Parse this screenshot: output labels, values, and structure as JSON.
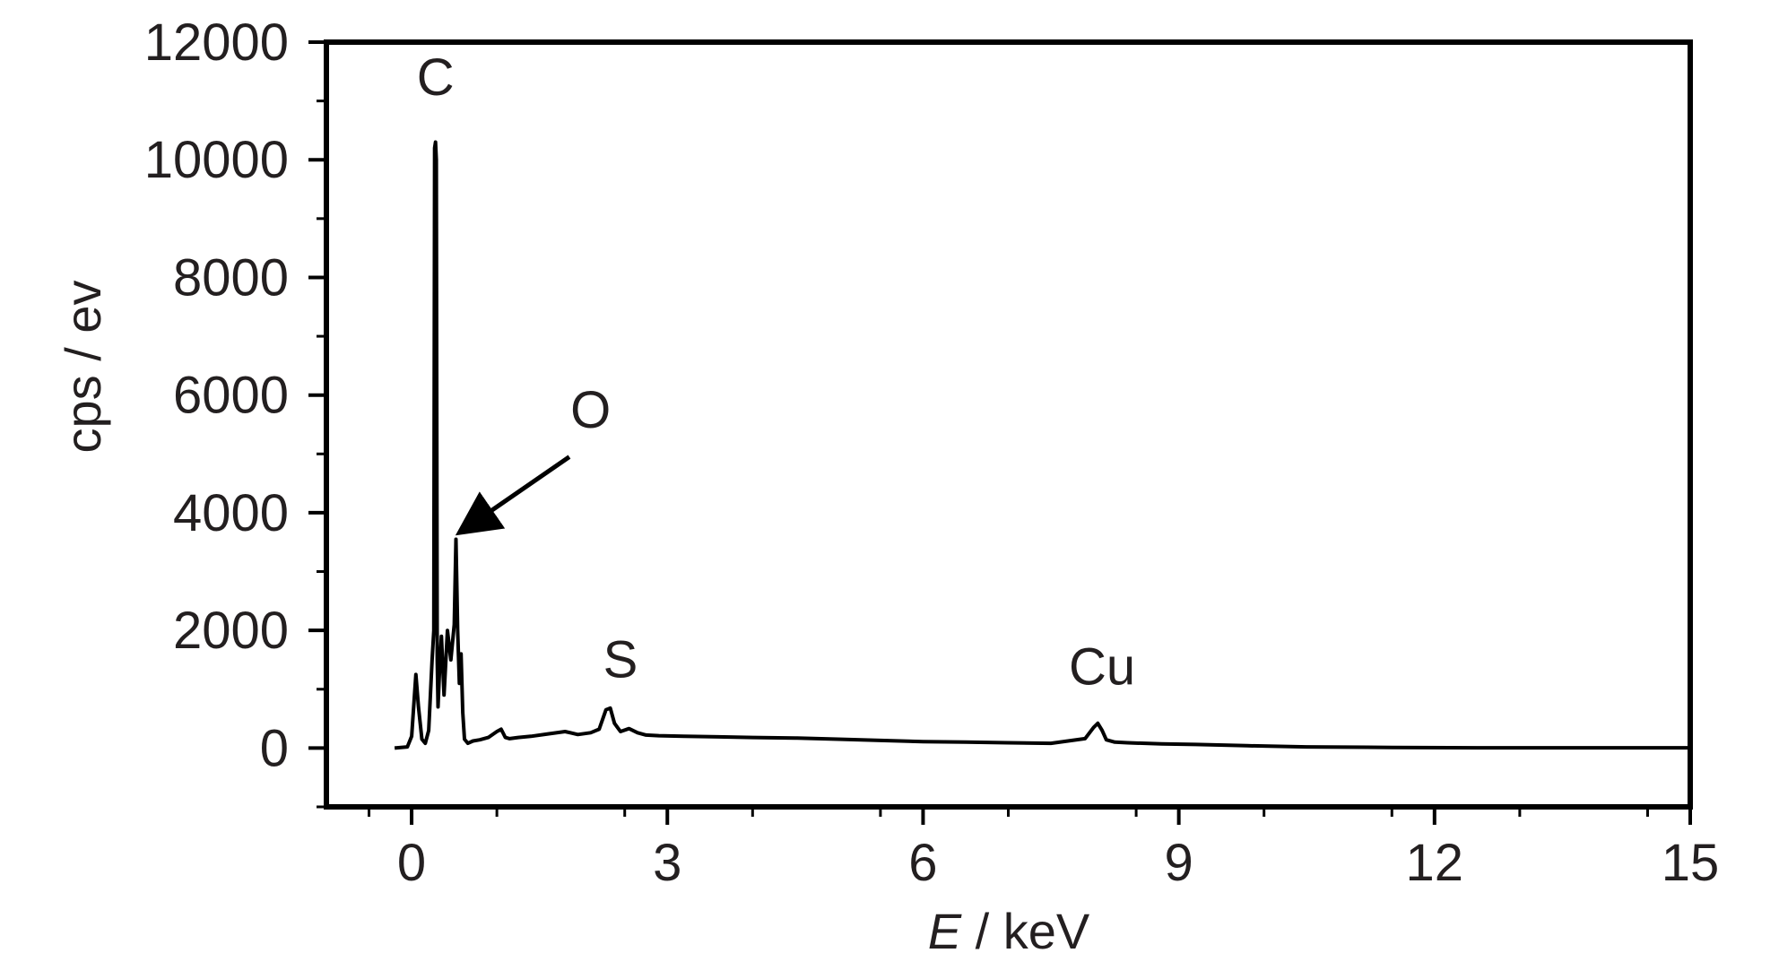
{
  "chart_data": {
    "type": "line",
    "xlabel_var": "E",
    "xlabel_unit": " / keV",
    "ylabel": "cps / ev",
    "xlim": [
      -1,
      15
    ],
    "ylim": [
      -1000,
      12000
    ],
    "x_ticks": [
      0,
      3,
      6,
      9,
      12,
      15
    ],
    "x_tick_labels": [
      "0",
      "3",
      "6",
      "9",
      "12",
      "15"
    ],
    "y_ticks": [
      0,
      2000,
      4000,
      6000,
      8000,
      10000,
      12000
    ],
    "y_tick_labels": [
      "0",
      "2000",
      "4000",
      "6000",
      "8000",
      "10000",
      "12000"
    ],
    "grid": false,
    "legend": "none",
    "annotations": [
      {
        "label": "C",
        "x": 0.28,
        "y": 11100,
        "arrow": false
      },
      {
        "label": "O",
        "x": 2.1,
        "y": 5450,
        "arrow": true,
        "arrow_from": [
          1.85,
          4950
        ],
        "arrow_to": [
          0.6,
          3700
        ]
      },
      {
        "label": "S",
        "x": 2.45,
        "y": 1200,
        "arrow": false
      },
      {
        "label": "Cu",
        "x": 8.1,
        "y": 1080,
        "arrow": false
      }
    ],
    "series": [
      {
        "color": "#000000",
        "x": [
          -0.2,
          -0.05,
          0.0,
          0.05,
          0.08,
          0.12,
          0.16,
          0.2,
          0.24,
          0.26,
          0.27,
          0.28,
          0.29,
          0.3,
          0.31,
          0.33,
          0.35,
          0.38,
          0.42,
          0.46,
          0.5,
          0.52,
          0.54,
          0.56,
          0.58,
          0.6,
          0.62,
          0.66,
          0.72,
          0.8,
          0.9,
          1.0,
          1.05,
          1.1,
          1.15,
          1.25,
          1.4,
          1.6,
          1.8,
          1.95,
          2.1,
          2.2,
          2.28,
          2.33,
          2.38,
          2.45,
          2.55,
          2.65,
          2.75,
          2.9,
          3.2,
          3.6,
          4.0,
          4.5,
          5.0,
          5.5,
          6.0,
          6.5,
          7.0,
          7.5,
          7.9,
          8.0,
          8.05,
          8.1,
          8.15,
          8.25,
          8.4,
          8.8,
          9.2,
          9.8,
          10.5,
          11.5,
          12.5,
          13.5,
          14.5,
          15.0
        ],
        "y": [
          0,
          20,
          200,
          1250,
          700,
          150,
          80,
          300,
          1500,
          2000,
          10200,
          10300,
          10000,
          1500,
          700,
          1400,
          1900,
          900,
          2000,
          1500,
          2100,
          3550,
          2000,
          1100,
          1600,
          600,
          150,
          80,
          120,
          140,
          180,
          280,
          320,
          180,
          160,
          180,
          200,
          240,
          280,
          230,
          260,
          320,
          650,
          680,
          420,
          280,
          330,
          260,
          220,
          210,
          200,
          190,
          180,
          170,
          150,
          130,
          110,
          100,
          90,
          80,
          160,
          350,
          420,
          300,
          140,
          100,
          90,
          70,
          60,
          40,
          20,
          10,
          5,
          5,
          5,
          5
        ]
      }
    ]
  }
}
